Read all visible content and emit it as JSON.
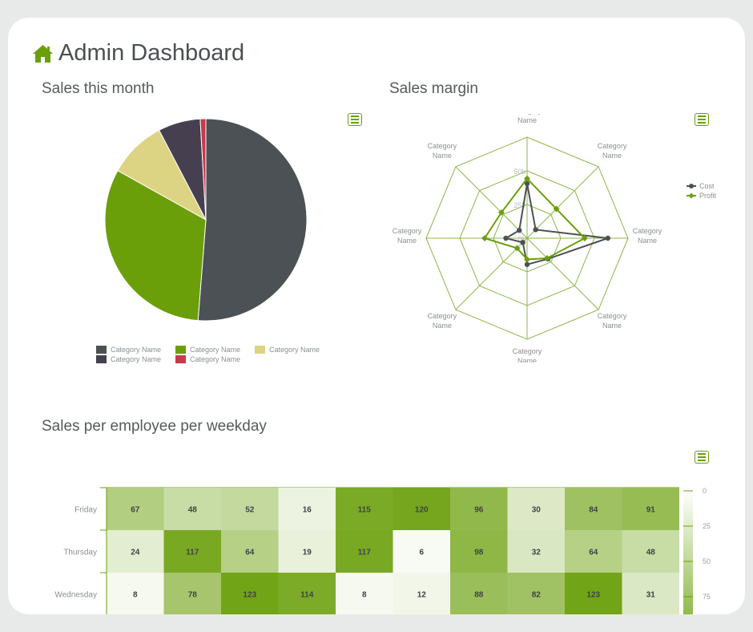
{
  "header": {
    "title": "Admin Dashboard",
    "icon": "home-icon"
  },
  "sections": {
    "pie_title": "Sales this month",
    "radar_title": "Sales margin",
    "heatmap_title": "Sales per employee per weekday"
  },
  "colors": {
    "accent": "#6a9f0a",
    "dark": "#4b5154",
    "plum": "#453f4f",
    "sand": "#dcd482",
    "red": "#c9384c"
  },
  "chart_data": [
    {
      "type": "pie",
      "title": "Sales this month",
      "slices": [
        {
          "name": "Category Name",
          "value": 51.5,
          "color": "#4b5154"
        },
        {
          "name": "Category Name",
          "value": 32.0,
          "color": "#6a9f0a"
        },
        {
          "name": "Category Name",
          "value": 9.3,
          "color": "#dcd482"
        },
        {
          "name": "Category Name",
          "value": 6.8,
          "color": "#453f4f"
        },
        {
          "name": "Category Name",
          "value": 0.9,
          "color": "#c9384c"
        }
      ]
    },
    {
      "type": "radar",
      "title": "Sales margin",
      "categories": [
        "Category Name",
        "Category Name",
        "Category Name",
        "Category Name",
        "Category Name",
        "Category Name",
        "Category Name",
        "Category Name"
      ],
      "axis_ticks": [
        "0k",
        "25k",
        "50k"
      ],
      "rmax": 100,
      "series": [
        {
          "name": "Cost",
          "color": "#4b5154",
          "values": [
            54,
            12,
            80,
            29,
            26,
            6,
            21,
            11
          ]
        },
        {
          "name": "Profit",
          "color": "#6a9f0a",
          "values": [
            59,
            41,
            57,
            28,
            21,
            14,
            42,
            36
          ]
        }
      ]
    },
    {
      "type": "heatmap",
      "title": "Sales per employee per weekday",
      "rows": [
        "Friday",
        "Thursday",
        "Wednesday"
      ],
      "values": [
        [
          67,
          48,
          52,
          16,
          115,
          120,
          96,
          30,
          84,
          91
        ],
        [
          24,
          117,
          64,
          19,
          117,
          6,
          98,
          32,
          64,
          48
        ],
        [
          8,
          78,
          123,
          114,
          8,
          12,
          88,
          82,
          123,
          31
        ]
      ],
      "color_min": "#ffffff",
      "color_max": "#6a9f0a",
      "value_max": 130,
      "colorbar_ticks": [
        "0",
        "25",
        "50",
        "75"
      ]
    }
  ]
}
